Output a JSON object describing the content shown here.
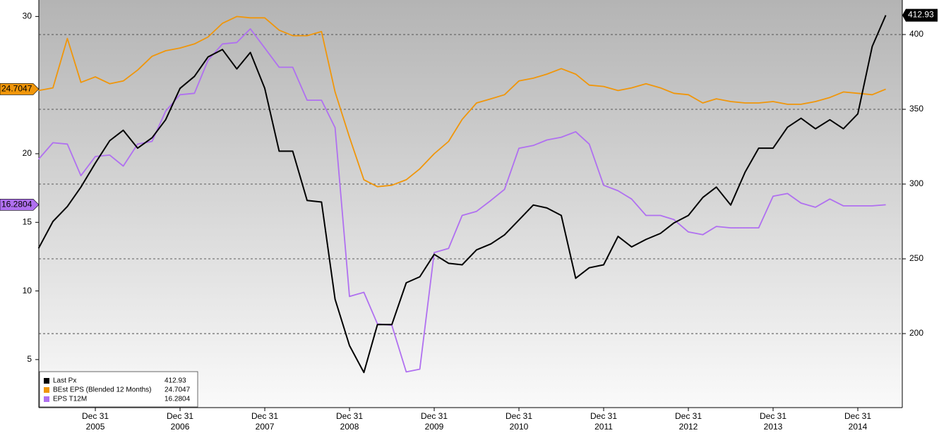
{
  "chart_data": {
    "type": "line",
    "xlim": [
      2005.333,
      2015.525
    ],
    "xticks": [
      {
        "value": 2006,
        "label": "Dec 31",
        "year": "2005"
      },
      {
        "value": 2007,
        "label": "Dec 31",
        "year": "2006"
      },
      {
        "value": 2008,
        "label": "Dec 31",
        "year": "2007"
      },
      {
        "value": 2009,
        "label": "Dec 31",
        "year": "2008"
      },
      {
        "value": 2010,
        "label": "Dec 31",
        "year": "2009"
      },
      {
        "value": 2011,
        "label": "Dec 31",
        "year": "2010"
      },
      {
        "value": 2012,
        "label": "Dec 31",
        "year": "2011"
      },
      {
        "value": 2013,
        "label": "Dec 31",
        "year": "2012"
      },
      {
        "value": 2014,
        "label": "Dec 31",
        "year": "2013"
      },
      {
        "value": 2015,
        "label": "Dec 31",
        "year": "2014"
      }
    ],
    "ylim": [
      1.5,
      31.2
    ],
    "yticks": [
      5,
      10,
      15,
      20,
      30
    ],
    "y2lim": [
      150.5,
      423.1
    ],
    "y2ticks": [
      200,
      250,
      300,
      350,
      400
    ],
    "grid": true,
    "legend": "lower left",
    "x": [
      2005.33,
      2005.5,
      2005.67,
      2005.83,
      2006,
      2006.17,
      2006.33,
      2006.5,
      2006.67,
      2006.83,
      2007,
      2007.17,
      2007.33,
      2007.5,
      2007.67,
      2007.83,
      2008,
      2008.17,
      2008.33,
      2008.5,
      2008.67,
      2008.83,
      2009,
      2009.17,
      2009.33,
      2009.5,
      2009.67,
      2009.83,
      2010,
      2010.17,
      2010.33,
      2010.5,
      2010.67,
      2010.83,
      2011,
      2011.17,
      2011.33,
      2011.5,
      2011.67,
      2011.83,
      2012,
      2012.17,
      2012.33,
      2012.5,
      2012.67,
      2012.83,
      2013,
      2013.17,
      2013.33,
      2013.5,
      2013.67,
      2013.83,
      2014,
      2014.17,
      2014.33,
      2014.5,
      2014.67,
      2014.83,
      2015,
      2015.17,
      2015.33
    ],
    "series": [
      {
        "name": "Last Px",
        "color": "#000000",
        "axis": "y2",
        "values": [
          257,
          275,
          285,
          298,
          314,
          329,
          336,
          324,
          331,
          343,
          364,
          372,
          385,
          390,
          377,
          388,
          364,
          322,
          322,
          289,
          288,
          223,
          192,
          174,
          206,
          206,
          234,
          238,
          253,
          247,
          246,
          256,
          260,
          266,
          276,
          286,
          284,
          279,
          237,
          244,
          246,
          265,
          258,
          263,
          267,
          274,
          279,
          291,
          298,
          286,
          308,
          324,
          324,
          338,
          344,
          337,
          343,
          337,
          347,
          392,
          412.93
        ]
      },
      {
        "name": "BEst EPS (Blended 12 Months)",
        "color": "#f0960a",
        "values": [
          24.6,
          24.8,
          28.4,
          25.2,
          25.6,
          25.1,
          25.3,
          26.1,
          27.1,
          27.5,
          27.7,
          28.0,
          28.5,
          29.5,
          30.0,
          29.9,
          29.9,
          29.0,
          28.6,
          28.6,
          28.9,
          24.5,
          21.2,
          18.1,
          17.6,
          17.7,
          18.1,
          18.9,
          20.0,
          20.9,
          22.5,
          23.7,
          24.0,
          24.3,
          25.3,
          25.5,
          25.8,
          26.2,
          25.8,
          25.0,
          24.9,
          24.6,
          24.8,
          25.1,
          24.8,
          24.4,
          24.3,
          23.7,
          24.0,
          23.8,
          23.7,
          23.7,
          23.8,
          23.6,
          23.6,
          23.8,
          24.1,
          24.5,
          24.4,
          24.3,
          24.7047
        ]
      },
      {
        "name": "EPS T12M",
        "color": "#b070f0",
        "values": [
          19.6,
          20.8,
          20.7,
          18.4,
          19.8,
          19.9,
          19.1,
          20.7,
          20.9,
          23.1,
          24.3,
          24.4,
          26.8,
          28.0,
          28.1,
          29.1,
          27.7,
          26.3,
          26.3,
          23.9,
          23.9,
          21.9,
          9.6,
          9.9,
          7.6,
          7.5,
          4.1,
          4.3,
          12.8,
          13.1,
          15.5,
          15.8,
          16.6,
          17.4,
          20.4,
          20.6,
          21.0,
          21.2,
          21.6,
          20.7,
          17.7,
          17.3,
          16.7,
          15.5,
          15.5,
          15.2,
          14.3,
          14.1,
          14.7,
          14.6,
          14.6,
          14.6,
          16.9,
          17.1,
          16.4,
          16.1,
          16.7,
          16.2,
          16.2,
          16.2,
          16.2804
        ]
      }
    ]
  }
}
